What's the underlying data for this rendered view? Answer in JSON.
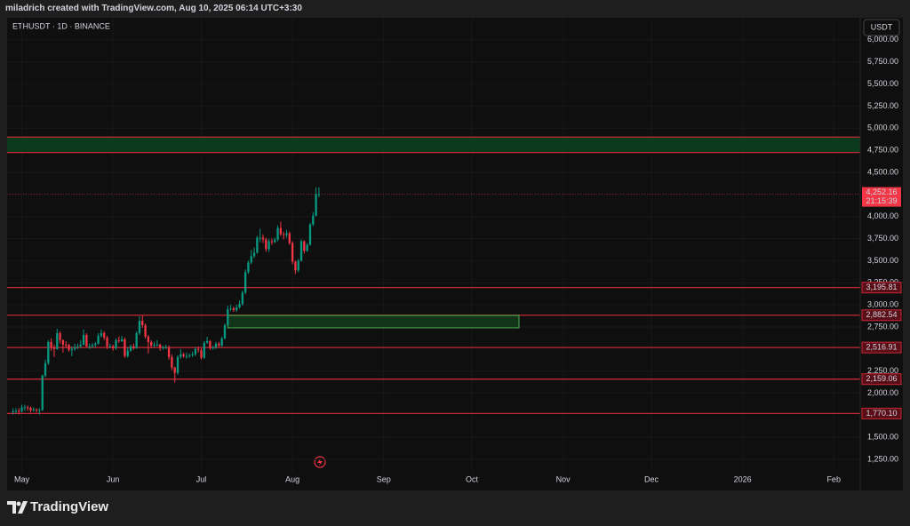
{
  "header": "miladrich created with TradingView.com, Aug 10, 2025 06:14 UTC+3:30",
  "footer": "TradingView",
  "chart_data": {
    "type": "candlestick",
    "symbol": "ETHUSDT · 1D · BINANCE",
    "currency": "USDT",
    "up_color": "#089981",
    "down_color": "#f23645",
    "x": [
      -3,
      -2,
      -1,
      0,
      1,
      2,
      3,
      4,
      5,
      6,
      7,
      8,
      9,
      10,
      11,
      12,
      13,
      14,
      15,
      16,
      17,
      18,
      19,
      20,
      21,
      22,
      23,
      24,
      25,
      26,
      27,
      28,
      29,
      30,
      31,
      32,
      33,
      34,
      35,
      36,
      37,
      38,
      39,
      40,
      41,
      42,
      43,
      44,
      45,
      46,
      47,
      48,
      49,
      50,
      51,
      52,
      53,
      54,
      55,
      56,
      57,
      58,
      59,
      60,
      61,
      62,
      63,
      64,
      65,
      66,
      67,
      68,
      69,
      70,
      71,
      72,
      73,
      74,
      75,
      76,
      77,
      78,
      79,
      80,
      81,
      82,
      83,
      84,
      85,
      86,
      87,
      88,
      89,
      90,
      91,
      92,
      93,
      94,
      95,
      96,
      97,
      98,
      99,
      100,
      101
    ],
    "open": [
      1790,
      1795,
      1800,
      1795,
      1840,
      1840,
      1835,
      1805,
      1815,
      1810,
      1810,
      2200,
      2340,
      2580,
      2520,
      2500,
      2680,
      2600,
      2550,
      2545,
      2490,
      2500,
      2520,
      2530,
      2550,
      2660,
      2530,
      2530,
      2545,
      2560,
      2650,
      2680,
      2630,
      2530,
      2530,
      2510,
      2600,
      2590,
      2610,
      2420,
      2480,
      2530,
      2510,
      2680,
      2820,
      2770,
      2640,
      2580,
      2540,
      2550,
      2550,
      2510,
      2520,
      2520,
      2410,
      2290,
      2230,
      2410,
      2440,
      2420,
      2420,
      2430,
      2440,
      2500,
      2490,
      2400,
      2570,
      2590,
      2510,
      2520,
      2560,
      2540,
      2620,
      2770,
      2950,
      2960,
      2940,
      2970,
      3010,
      3140,
      3370,
      3480,
      3550,
      3590,
      3760,
      3760,
      3740,
      3630,
      3720,
      3710,
      3740,
      3870,
      3800,
      3790,
      3810,
      3700,
      3490,
      3390,
      3500,
      3720,
      3610,
      3680,
      3910,
      4010,
      4250
    ],
    "high": [
      1830,
      1830,
      1830,
      1870,
      1870,
      1860,
      1850,
      1840,
      1830,
      1830,
      2210,
      2380,
      2600,
      2620,
      2550,
      2730,
      2700,
      2610,
      2590,
      2560,
      2530,
      2560,
      2560,
      2600,
      2720,
      2680,
      2560,
      2570,
      2580,
      2680,
      2720,
      2700,
      2650,
      2560,
      2550,
      2620,
      2640,
      2650,
      2630,
      2520,
      2550,
      2560,
      2700,
      2870,
      2880,
      2790,
      2660,
      2600,
      2580,
      2600,
      2560,
      2540,
      2550,
      2540,
      2440,
      2300,
      2430,
      2500,
      2460,
      2460,
      2450,
      2470,
      2520,
      2530,
      2510,
      2590,
      2640,
      2600,
      2540,
      2580,
      2580,
      2640,
      2790,
      2990,
      3000,
      2980,
      3000,
      3050,
      3160,
      3400,
      3500,
      3620,
      3650,
      3780,
      3860,
      3800,
      3760,
      3750,
      3750,
      3760,
      3900,
      3940,
      3830,
      3850,
      3830,
      3720,
      3500,
      3520,
      3740,
      3730,
      3700,
      3930,
      4050,
      4330,
      4330
    ],
    "low": [
      1760,
      1770,
      1760,
      1780,
      1800,
      1800,
      1780,
      1790,
      1780,
      1760,
      1800,
      2180,
      2320,
      2480,
      2410,
      2490,
      2560,
      2460,
      2510,
      2470,
      2420,
      2480,
      2500,
      2510,
      2540,
      2520,
      2500,
      2510,
      2520,
      2550,
      2630,
      2600,
      2500,
      2510,
      2480,
      2490,
      2570,
      2580,
      2400,
      2400,
      2470,
      2490,
      2500,
      2660,
      2740,
      2620,
      2450,
      2510,
      2520,
      2530,
      2480,
      2490,
      2500,
      2380,
      2260,
      2120,
      2210,
      2390,
      2400,
      2390,
      2400,
      2410,
      2420,
      2460,
      2380,
      2390,
      2560,
      2490,
      2490,
      2500,
      2520,
      2520,
      2610,
      2760,
      2930,
      2920,
      2920,
      2960,
      2990,
      3120,
      3350,
      3460,
      3530,
      3580,
      3710,
      3700,
      3600,
      3600,
      3680,
      3700,
      3720,
      3780,
      3740,
      3760,
      3680,
      3460,
      3350,
      3370,
      3490,
      3580,
      3600,
      3670,
      3890,
      4000,
      4220
    ],
    "close": [
      1795,
      1800,
      1795,
      1840,
      1840,
      1835,
      1805,
      1815,
      1810,
      1810,
      2200,
      2340,
      2580,
      2520,
      2500,
      2680,
      2600,
      2550,
      2545,
      2490,
      2500,
      2520,
      2530,
      2550,
      2660,
      2530,
      2530,
      2545,
      2560,
      2650,
      2680,
      2630,
      2530,
      2530,
      2510,
      2600,
      2590,
      2610,
      2420,
      2480,
      2530,
      2510,
      2680,
      2820,
      2770,
      2640,
      2580,
      2540,
      2550,
      2550,
      2510,
      2520,
      2520,
      2410,
      2290,
      2230,
      2410,
      2440,
      2420,
      2420,
      2430,
      2440,
      2500,
      2490,
      2400,
      2570,
      2590,
      2510,
      2520,
      2560,
      2540,
      2620,
      2770,
      2950,
      2960,
      2940,
      2970,
      3010,
      3140,
      3370,
      3480,
      3550,
      3590,
      3760,
      3760,
      3740,
      3630,
      3720,
      3710,
      3740,
      3870,
      3800,
      3790,
      3810,
      3700,
      3490,
      3390,
      3500,
      3720,
      3610,
      3680,
      3910,
      4010,
      4250,
      4252.16
    ],
    "xlim": [
      -5,
      285
    ],
    "xticks": [
      {
        "value": 0,
        "label": "May"
      },
      {
        "value": 31,
        "label": "Jun"
      },
      {
        "value": 61,
        "label": "Jul"
      },
      {
        "value": 92,
        "label": "Aug"
      },
      {
        "value": 123,
        "label": "Sep"
      },
      {
        "value": 153,
        "label": "Oct"
      },
      {
        "value": 184,
        "label": "Nov"
      },
      {
        "value": 214,
        "label": "Dec"
      },
      {
        "value": 245,
        "label": "2026"
      },
      {
        "value": 276,
        "label": "Feb"
      }
    ],
    "ylim": [
      1100,
      6250
    ],
    "yticks": [
      {
        "value": 1250,
        "label": "1,250.00"
      },
      {
        "value": 1500,
        "label": "1,500.00"
      },
      {
        "value": 2000,
        "label": "2,000.00"
      },
      {
        "value": 2250,
        "label": "2,250.00"
      },
      {
        "value": 2750,
        "label": "2,750.00"
      },
      {
        "value": 3000,
        "label": "3,000.00"
      },
      {
        "value": 3250,
        "label": "3,250.00"
      },
      {
        "value": 3500,
        "label": "3,500.00"
      },
      {
        "value": 3750,
        "label": "3,750.00"
      },
      {
        "value": 4000,
        "label": "4,000.00"
      },
      {
        "value": 4500,
        "label": "4,500.00"
      },
      {
        "value": 4750,
        "label": "4,750.00"
      },
      {
        "value": 5000,
        "label": "5,000.00"
      },
      {
        "value": 5250,
        "label": "5,250.00"
      },
      {
        "value": 5500,
        "label": "5,500.00"
      },
      {
        "value": 5750,
        "label": "5,750.00"
      },
      {
        "value": 6000,
        "label": "6,000.00"
      }
    ],
    "levels": {
      "color": "#c62835",
      "values": [
        3195.81,
        2882.54,
        2516.91,
        2159.06,
        1770.1
      ],
      "value_labels": [
        "3,195.81",
        "2,882.54",
        "2,516.91",
        "2,159.06",
        "1,770.10"
      ]
    },
    "supply_zone": {
      "color": "#0b3a1c",
      "border": "#c62835",
      "y": [
        4725,
        4900
      ]
    },
    "demand_box": {
      "color": "#133d1c",
      "border": "#4caf50",
      "x": [
        70,
        169
      ],
      "y": [
        2740,
        2880
      ]
    },
    "last_price": {
      "value": 4252.16,
      "label": "4,252.16",
      "countdown": "21:15:39",
      "color": "#f23645"
    }
  }
}
